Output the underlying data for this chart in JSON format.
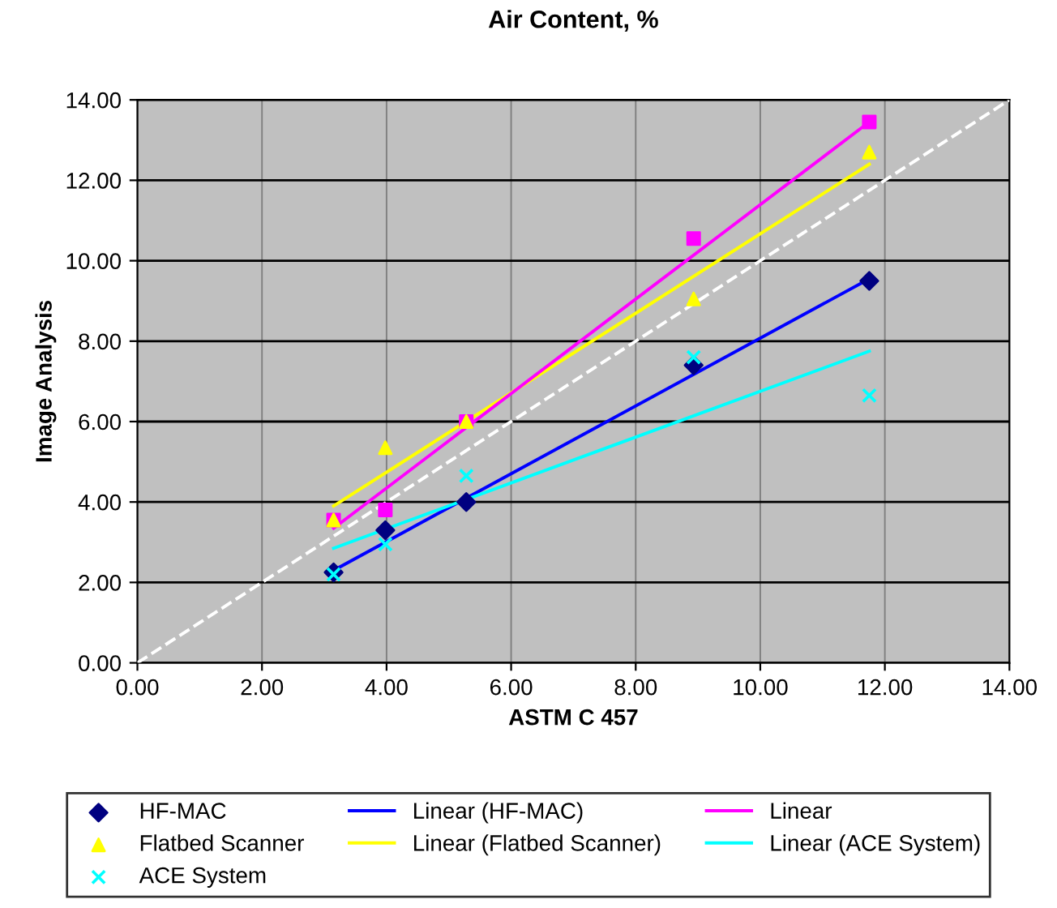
{
  "chart_data": {
    "type": "scatter",
    "title": "Air Content, %",
    "xlabel": "ASTM C 457",
    "ylabel": "Image Analysis",
    "x": [
      3.15,
      3.98,
      5.28,
      8.93,
      11.75
    ],
    "series": [
      {
        "name": "HF-MAC",
        "color": "#000080",
        "marker": "diamond",
        "values": [
          2.25,
          3.3,
          4.0,
          7.4,
          9.5
        ]
      },
      {
        "color": "#ff00ff",
        "marker": "square",
        "values": [
          3.55,
          3.8,
          6.0,
          10.55,
          13.45
        ]
      },
      {
        "name": "Flatbed Scanner",
        "color": "#ffff00",
        "marker": "triangle",
        "values": [
          3.55,
          5.35,
          6.0,
          9.05,
          12.7
        ]
      },
      {
        "name": "ACE System",
        "color": "#00ffff",
        "marker": "cross",
        "values": [
          2.2,
          2.95,
          4.65,
          7.6,
          6.65
        ]
      },
      {
        "name": "Linear (HF-MAC)",
        "type": "line",
        "color": "#0000ff",
        "x": [
          3.15,
          11.75
        ],
        "values": [
          2.3,
          9.55
        ]
      },
      {
        "name": "Linear (Flatbed Scanner)",
        "type": "line",
        "color": "#ffff00",
        "x": [
          3.15,
          11.75
        ],
        "values": [
          3.9,
          12.4
        ]
      },
      {
        "name": "Linear",
        "type": "line",
        "color": "#ff00ff",
        "x": [
          3.15,
          11.75
        ],
        "values": [
          3.35,
          13.45
        ]
      },
      {
        "name": "Linear (ACE System)",
        "type": "line",
        "color": "#00ffff",
        "x": [
          3.15,
          11.75
        ],
        "values": [
          2.85,
          7.75
        ]
      },
      {
        "type": "line",
        "color": "#ffffff",
        "line_style": "dashed",
        "x": [
          0,
          14
        ],
        "values": [
          0,
          14
        ]
      }
    ],
    "xlim": [
      0,
      14
    ],
    "ylim": [
      0,
      14
    ],
    "xticks": [
      {
        "value": 0,
        "label": "0.00"
      },
      {
        "value": 2,
        "label": "2.00"
      },
      {
        "value": 4,
        "label": "4.00"
      },
      {
        "value": 6,
        "label": "6.00"
      },
      {
        "value": 8,
        "label": "8.00"
      },
      {
        "value": 10,
        "label": "10.00"
      },
      {
        "value": 12,
        "label": "12.00"
      },
      {
        "value": 14,
        "label": "14.00"
      }
    ],
    "yticks": [
      {
        "value": 0,
        "label": "0.00"
      },
      {
        "value": 2,
        "label": "2.00"
      },
      {
        "value": 4,
        "label": "4.00"
      },
      {
        "value": 6,
        "label": "6.00"
      },
      {
        "value": 8,
        "label": "8.00"
      },
      {
        "value": 10,
        "label": "10.00"
      },
      {
        "value": 12,
        "label": "12.00"
      },
      {
        "value": 14,
        "label": "14.00"
      }
    ],
    "grid": true,
    "legend": "bottom"
  }
}
